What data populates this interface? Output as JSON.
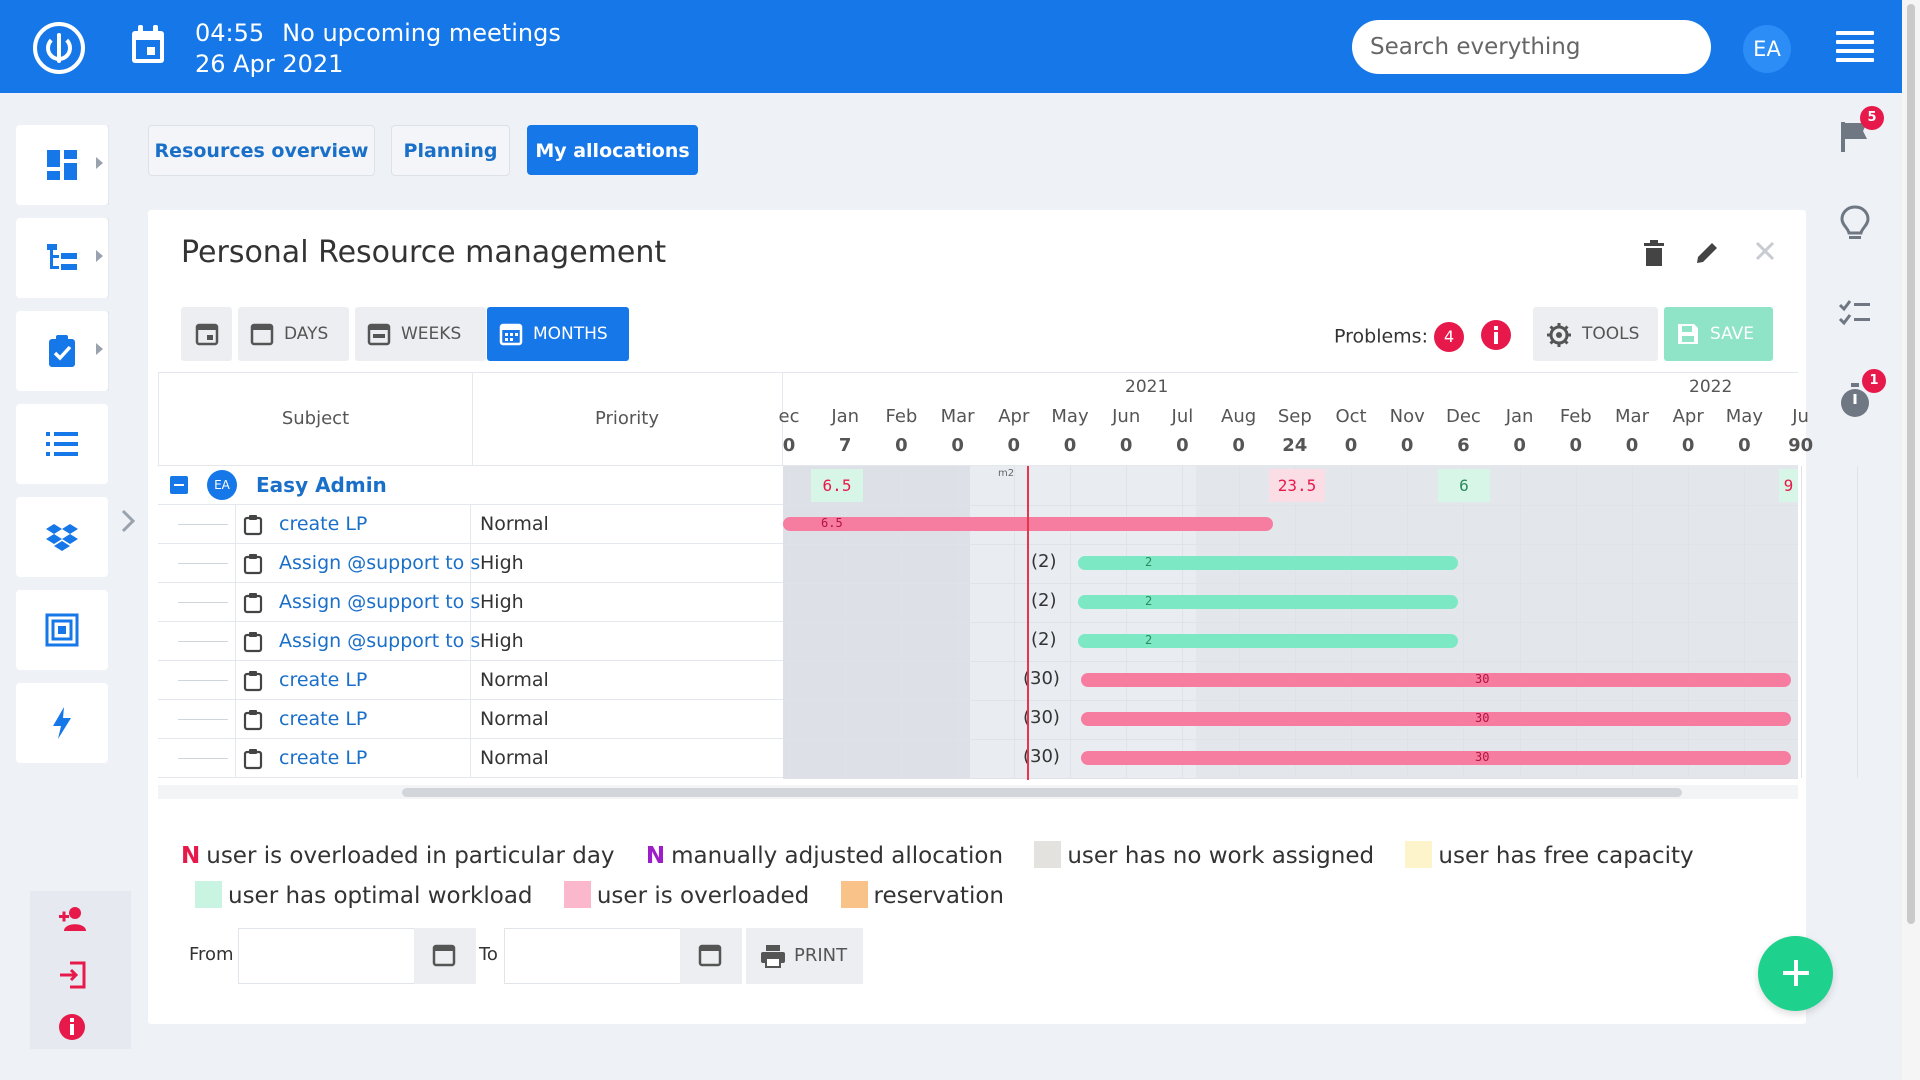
{
  "topbar": {
    "time": "04:55",
    "meetings": "No upcoming meetings",
    "date": "26 Apr 2021",
    "search_placeholder": "Search everything",
    "user_initials": "EA"
  },
  "tabs": [
    {
      "label": "Resources overview",
      "active": false
    },
    {
      "label": "Planning",
      "active": false
    },
    {
      "label": "My allocations",
      "active": true
    }
  ],
  "card": {
    "title": "Personal Resource management"
  },
  "toolbar": {
    "days": "DAYS",
    "weeks": "WEEKS",
    "months": "MONTHS",
    "problems_label": "Problems:",
    "problems_count": "4",
    "tools": "TOOLS",
    "save": "SAVE"
  },
  "grid": {
    "col_subject": "Subject",
    "col_priority": "Priority",
    "group": {
      "initials": "EA",
      "name": "Easy Admin"
    },
    "rows": [
      {
        "subject": "create LP",
        "priority": "Normal"
      },
      {
        "subject": "Assign @support to s",
        "priority": "High"
      },
      {
        "subject": "Assign @support to s",
        "priority": "High"
      },
      {
        "subject": "Assign @support to s",
        "priority": "High"
      },
      {
        "subject": "create LP",
        "priority": "Normal"
      },
      {
        "subject": "create LP",
        "priority": "Normal"
      },
      {
        "subject": "create LP",
        "priority": "Normal"
      }
    ]
  },
  "timeline": {
    "years": [
      "2021",
      "2022"
    ],
    "months": [
      "ec",
      "Jan",
      "Feb",
      "Mar",
      "Apr",
      "May",
      "Jun",
      "Jul",
      "Aug",
      "Sep",
      "Oct",
      "Nov",
      "Dec",
      "Jan",
      "Feb",
      "Mar",
      "Apr",
      "May",
      "Ju"
    ],
    "totals": [
      "0",
      "7",
      "0",
      "0",
      "0",
      "0",
      "0",
      "0",
      "0",
      "24",
      "0",
      "0",
      "6",
      "0",
      "0",
      "0",
      "0",
      "0",
      "90"
    ],
    "group_cells": [
      "6.5",
      "23.5",
      "6",
      "9"
    ],
    "group_marker": "m2",
    "row_labels": [
      "(2)",
      "(2)",
      "(2)",
      "(30)",
      "(30)",
      "(30)"
    ],
    "bar_labels": [
      "6.5",
      "2",
      "2",
      "2",
      "30",
      "30",
      "30"
    ]
  },
  "legend": {
    "overloaded_day_mark": "N",
    "overloaded_day": "user is overloaded in particular day",
    "manual_mark": "N",
    "manual": "manually adjusted allocation",
    "no_work": "user has no work assigned",
    "free_capacity": "user has free capacity",
    "optimal": "user has optimal workload",
    "overloaded": "user is overloaded",
    "reservation": "reservation"
  },
  "form": {
    "from": "From",
    "to": "To",
    "print": "PRINT"
  },
  "right_sidebar": {
    "flag_badge": "5",
    "timer_badge": "1"
  },
  "colors": {
    "primary": "#1677e8",
    "overload": "#e7194b",
    "manual": "#9b1ec8",
    "green_bar": "#7ce8c4",
    "pink_bar": "#f77da0",
    "no_work": "#e4e2de",
    "free": "#fdf4cc",
    "optimal": "#c9f4e2",
    "overloaded_swatch": "#fbb7cb",
    "reservation": "#f9c289"
  }
}
